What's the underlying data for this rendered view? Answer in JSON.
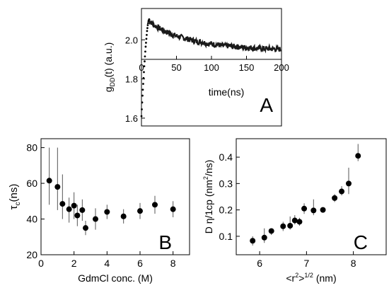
{
  "chart_data": [
    {
      "panel": "A",
      "type": "line",
      "xlabel": "time(ns)",
      "ylabel_main": "g",
      "ylabel_sub": "DD",
      "ylabel_rest": "(t) (a.u.)",
      "xlim": [
        0,
        200
      ],
      "ylim": [
        1.56,
        2.16
      ],
      "axis_y_at": 1.9,
      "xticks": [
        0,
        50,
        100,
        150,
        200
      ],
      "xtick_labels": [
        "0",
        "50",
        "100",
        "150",
        "200"
      ],
      "yticks": [
        1.6,
        1.8,
        2.0
      ],
      "ytick_labels": [
        "1.6",
        "1.8",
        "2.0"
      ],
      "rise": {
        "x": [
          0.0,
          0.5,
          1.0,
          1.5,
          2.0,
          2.5,
          3.0,
          3.5,
          4.0,
          4.5,
          5.0,
          5.5,
          6.0,
          6.5,
          7.0,
          7.5,
          8.0,
          8.5,
          9.0,
          9.5,
          10.0,
          10.5,
          11.0
        ],
        "y": [
          1.61,
          1.645,
          1.68,
          1.715,
          1.745,
          1.775,
          1.805,
          1.835,
          1.865,
          1.89,
          1.915,
          1.94,
          1.965,
          1.985,
          2.005,
          2.025,
          2.045,
          2.06,
          2.075,
          2.085,
          2.095,
          2.1,
          2.105
        ]
      },
      "decay": {
        "x": [
          11,
          15,
          20,
          25,
          30,
          35,
          40,
          45,
          50,
          55,
          60,
          65,
          70,
          75,
          80,
          85,
          90,
          95,
          100,
          105,
          110,
          115,
          120,
          125,
          130,
          135,
          140,
          145,
          150,
          155,
          160,
          165,
          170,
          175,
          180,
          185,
          190,
          195,
          200
        ],
        "y": [
          2.1,
          2.085,
          2.07,
          2.06,
          2.05,
          2.04,
          2.035,
          2.025,
          2.02,
          2.015,
          2.01,
          2.005,
          2.0,
          1.995,
          1.99,
          1.99,
          1.985,
          1.98,
          1.98,
          1.975,
          1.975,
          1.97,
          1.97,
          1.968,
          1.966,
          1.965,
          1.963,
          1.962,
          1.96,
          1.96,
          1.958,
          1.957,
          1.956,
          1.955,
          1.955,
          1.954,
          1.953,
          1.952,
          1.952
        ]
      }
    },
    {
      "panel": "B",
      "type": "scatter",
      "xlabel": "GdmCl conc. (M)",
      "ylabel_main": "τ",
      "ylabel_sub": "c",
      "ylabel_rest": "(ns)",
      "xlim": [
        0,
        9
      ],
      "ylim": [
        20,
        85
      ],
      "xticks": [
        0,
        2,
        4,
        6,
        8
      ],
      "xtick_labels": [
        "0",
        "2",
        "4",
        "6",
        "8"
      ],
      "yticks": [
        20,
        40,
        60,
        80
      ],
      "ytick_labels": [
        "20",
        "40",
        "60",
        "80"
      ],
      "points": [
        {
          "x": 0.5,
          "y": 61.5,
          "lo": 48,
          "hi": 80
        },
        {
          "x": 1.0,
          "y": 58,
          "lo": 45,
          "hi": 80
        },
        {
          "x": 1.3,
          "y": 48.5,
          "lo": 40,
          "hi": 65
        },
        {
          "x": 1.7,
          "y": 45.5,
          "lo": 38,
          "hi": 52
        },
        {
          "x": 2.0,
          "y": 47.5,
          "lo": 40,
          "hi": 55
        },
        {
          "x": 2.2,
          "y": 42,
          "lo": 36,
          "hi": 48
        },
        {
          "x": 2.5,
          "y": 45,
          "lo": 39,
          "hi": 51
        },
        {
          "x": 2.7,
          "y": 35,
          "lo": 31,
          "hi": 39
        },
        {
          "x": 3.3,
          "y": 40,
          "lo": 34,
          "hi": 46
        },
        {
          "x": 4.0,
          "y": 44,
          "lo": 40,
          "hi": 48
        },
        {
          "x": 5.0,
          "y": 41.5,
          "lo": 37.5,
          "hi": 45.5
        },
        {
          "x": 6.0,
          "y": 44.5,
          "lo": 40,
          "hi": 49
        },
        {
          "x": 6.9,
          "y": 48,
          "lo": 43,
          "hi": 53
        },
        {
          "x": 8.0,
          "y": 45.5,
          "lo": 41,
          "hi": 50
        }
      ]
    },
    {
      "panel": "C",
      "type": "scatter",
      "xlabel_main": "<r",
      "xlabel_sup": "2",
      "xlabel_mid": ">",
      "xlabel_sup2": "1/2",
      "xlabel_rest": " (nm)",
      "ylabel_main": "D η/1cp (nm",
      "ylabel_sup": "2",
      "ylabel_rest": "/ns)",
      "xlim": [
        5.5,
        8.7
      ],
      "ylim": [
        0.03,
        0.47
      ],
      "xticks": [
        6,
        7,
        8
      ],
      "xtick_labels": [
        "6",
        "7",
        "8"
      ],
      "yticks": [
        0.1,
        0.2,
        0.3,
        0.4
      ],
      "ytick_labels": [
        "0.1",
        "0.2",
        "0.3",
        "0.4"
      ],
      "points": [
        {
          "x": 5.85,
          "y": 0.083,
          "lo": 0.065,
          "hi": 0.1
        },
        {
          "x": 6.1,
          "y": 0.095,
          "lo": 0.075,
          "hi": 0.13
        },
        {
          "x": 6.25,
          "y": 0.12,
          "lo": 0.105,
          "hi": 0.13
        },
        {
          "x": 6.5,
          "y": 0.138,
          "lo": 0.12,
          "hi": 0.155
        },
        {
          "x": 6.65,
          "y": 0.14,
          "lo": 0.125,
          "hi": 0.175
        },
        {
          "x": 6.75,
          "y": 0.16,
          "lo": 0.145,
          "hi": 0.18
        },
        {
          "x": 6.85,
          "y": 0.155,
          "lo": 0.14,
          "hi": 0.17
        },
        {
          "x": 6.95,
          "y": 0.205,
          "lo": 0.185,
          "hi": 0.225
        },
        {
          "x": 7.15,
          "y": 0.198,
          "lo": 0.18,
          "hi": 0.24
        },
        {
          "x": 7.35,
          "y": 0.2,
          "lo": 0.19,
          "hi": 0.21
        },
        {
          "x": 7.6,
          "y": 0.245,
          "lo": 0.23,
          "hi": 0.26
        },
        {
          "x": 7.75,
          "y": 0.27,
          "lo": 0.255,
          "hi": 0.29
        },
        {
          "x": 7.9,
          "y": 0.3,
          "lo": 0.26,
          "hi": 0.36
        },
        {
          "x": 8.1,
          "y": 0.405,
          "lo": 0.385,
          "hi": 0.45
        }
      ]
    }
  ],
  "panel_labels": {
    "a": "A",
    "b": "B",
    "c": "C"
  }
}
